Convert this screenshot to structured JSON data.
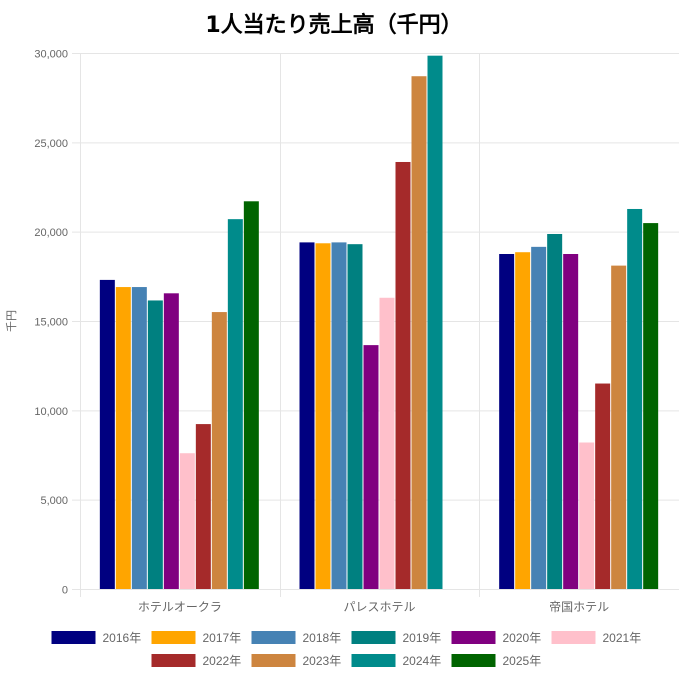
{
  "chart_data": {
    "type": "bar",
    "title": "1人当たり売上高（千円）",
    "ylabel": "千円",
    "xlabel": "",
    "ylim": [
      0,
      30000
    ],
    "yticks": [
      "0",
      "5,000",
      "10,000",
      "15,000",
      "20,000",
      "25,000",
      "30,000"
    ],
    "grid": true,
    "legend": "bottom",
    "categories": [
      "ホテルオークラ",
      "パレスホテル",
      "帝国ホテル"
    ],
    "series": [
      {
        "name": "2016年",
        "color": "#000080",
        "values": [
          17300,
          19400,
          18750
        ]
      },
      {
        "name": "2017年",
        "color": "#FFA500",
        "values": [
          16900,
          19350,
          18850
        ]
      },
      {
        "name": "2018年",
        "color": "#4682B4",
        "values": [
          16900,
          19400,
          19150
        ]
      },
      {
        "name": "2019年",
        "color": "#008080",
        "values": [
          16150,
          19300,
          19870
        ]
      },
      {
        "name": "2020年",
        "color": "#800080",
        "values": [
          16550,
          13650,
          18750
        ]
      },
      {
        "name": "2021年",
        "color": "#FFC0CB",
        "values": [
          7600,
          16300,
          8200
        ]
      },
      {
        "name": "2022年",
        "color": "#A52A2A",
        "values": [
          9230,
          23900,
          11500
        ]
      },
      {
        "name": "2023年",
        "color": "#CD853F",
        "values": [
          15500,
          28700,
          18100
        ]
      },
      {
        "name": "2024年",
        "color": "#008B8B",
        "values": [
          20700,
          29850,
          21270
        ]
      },
      {
        "name": "2025年",
        "color": "#006400",
        "values": [
          21700,
          null,
          20480
        ]
      }
    ]
  }
}
